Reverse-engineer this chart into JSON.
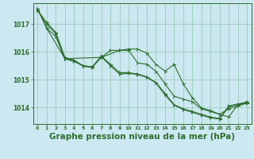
{
  "background_color": "#cce8f0",
  "grid_color": "#99ccbb",
  "line_color": "#2d6e2d",
  "xlabel": "Graphe pression niveau de la mer (hPa)",
  "xlabel_fontsize": 7.5,
  "xlim": [
    -0.5,
    23.5
  ],
  "ylim": [
    1013.4,
    1017.75
  ],
  "yticks": [
    1014,
    1015,
    1016,
    1017
  ],
  "xticks": [
    0,
    1,
    2,
    3,
    4,
    5,
    6,
    7,
    8,
    9,
    10,
    11,
    12,
    13,
    14,
    15,
    16,
    17,
    18,
    19,
    20,
    21,
    22,
    23
  ],
  "series": [
    {
      "x": [
        0,
        1,
        2,
        3,
        4,
        5,
        6,
        7,
        8,
        9,
        10,
        11,
        12,
        13,
        14,
        15,
        16,
        17,
        18,
        19,
        20,
        21,
        22,
        23
      ],
      "y": [
        1017.55,
        1016.85,
        1016.55,
        1015.75,
        1015.65,
        1015.5,
        1015.45,
        1015.8,
        1016.05,
        1016.05,
        1016.05,
        1015.6,
        1015.55,
        1015.3,
        1014.85,
        1014.4,
        1014.3,
        1014.2,
        1013.95,
        1013.85,
        1013.75,
        1013.95,
        1014.05,
        1014.15
      ]
    },
    {
      "x": [
        0,
        1,
        2,
        3,
        4,
        5,
        6,
        7,
        8,
        9,
        10,
        11,
        12,
        13,
        14,
        15,
        16,
        17,
        18,
        19,
        20,
        21,
        22,
        23
      ],
      "y": [
        1017.5,
        1017.05,
        1016.7,
        1015.8,
        1015.7,
        1015.5,
        1015.45,
        1015.85,
        1015.55,
        1015.25,
        1015.25,
        1015.2,
        1015.1,
        1014.9,
        1014.5,
        1014.1,
        1013.95,
        1013.85,
        1013.75,
        1013.65,
        1013.6,
        1014.05,
        1014.12,
        1014.18
      ]
    },
    {
      "x": [
        0,
        1,
        2,
        3,
        4,
        5,
        6,
        7,
        8,
        9,
        10,
        11,
        12,
        13,
        14,
        15,
        16,
        17,
        18,
        19,
        20,
        21,
        22,
        23
      ],
      "y": [
        1017.48,
        1017.0,
        1016.65,
        1015.75,
        1015.68,
        1015.48,
        1015.43,
        1015.82,
        1015.5,
        1015.2,
        1015.22,
        1015.18,
        1015.08,
        1014.88,
        1014.45,
        1014.08,
        1013.92,
        1013.82,
        1013.72,
        1013.62,
        1013.58,
        1014.02,
        1014.1,
        1014.16
      ]
    },
    {
      "x": [
        0,
        1,
        3,
        7,
        9,
        10,
        11,
        12,
        13,
        14,
        15,
        16,
        17,
        18,
        19,
        20,
        21,
        22,
        23
      ],
      "y": [
        1017.55,
        1016.85,
        1015.75,
        1015.8,
        1016.05,
        1016.1,
        1016.1,
        1015.95,
        1015.55,
        1015.3,
        1015.55,
        1014.85,
        1014.35,
        1013.98,
        1013.88,
        1013.75,
        1013.65,
        1014.1,
        1014.2
      ]
    }
  ]
}
